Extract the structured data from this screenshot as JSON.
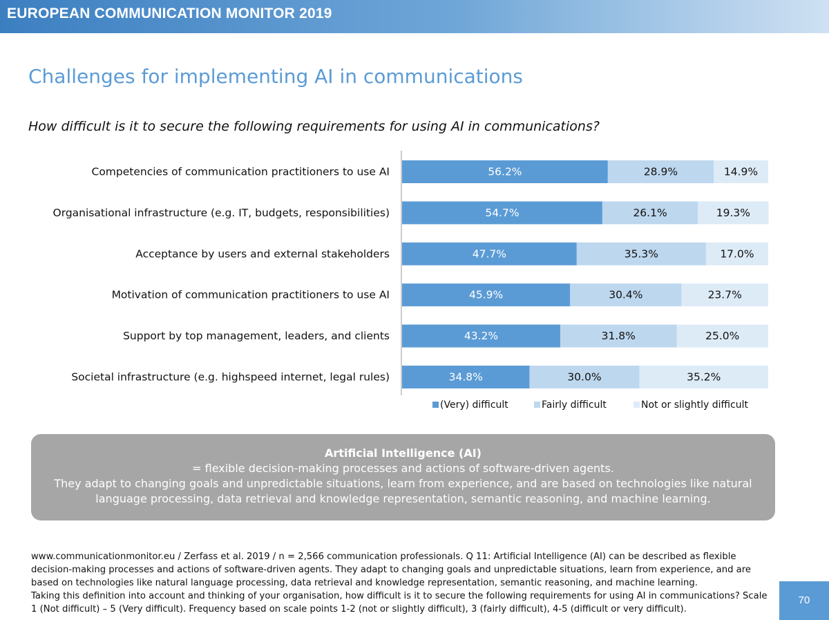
{
  "header": {
    "title": "EUROPEAN COMMUNICATION MONITOR 2019"
  },
  "page": {
    "title": "Challenges for implementing AI in communications",
    "question": "How difficult is it to secure the following requirements for using AI in communications?",
    "number": "70"
  },
  "colors": {
    "very_difficult": "#5b9bd5",
    "fairly_difficult": "#bdd7ee",
    "not_difficult": "#ddebf7",
    "header_blue": "#3c7fc1",
    "box_gray": "#a6a6a6"
  },
  "chart_data": {
    "type": "bar",
    "orientation": "horizontal",
    "stacked": true,
    "percent_format": "{v}%",
    "categories": [
      "Competencies of communication practitioners to use AI",
      "Organisational infrastructure (e.g. IT, budgets, responsibilities)",
      "Acceptance by users and external stakeholders",
      "Motivation of communication practitioners to use AI",
      "Support by top management, leaders, and clients",
      "Societal infrastructure (e.g. highspeed internet, legal rules)"
    ],
    "series": [
      {
        "name": "(Very) difficult",
        "values": [
          56.2,
          54.7,
          47.7,
          45.9,
          43.2,
          34.8
        ],
        "color": "#5b9bd5"
      },
      {
        "name": "Fairly difficult",
        "values": [
          28.9,
          26.1,
          35.3,
          30.4,
          31.8,
          30.0
        ],
        "color": "#bdd7ee"
      },
      {
        "name": "Not or slightly difficult",
        "values": [
          14.9,
          19.3,
          17.0,
          23.7,
          25.0,
          35.2
        ],
        "color": "#ddebf7"
      }
    ],
    "xlim": [
      0,
      100
    ],
    "legend_position": "bottom"
  },
  "ai_box": {
    "title": "Artificial Intelligence (AI)",
    "line1": "= flexible decision-making processes and actions of software-driven agents.",
    "line2": "They adapt to changing goals and unpredictable situations, learn from experience, and are based on technologies like natural language processing, data retrieval and knowledge representation, semantic reasoning, and machine learning."
  },
  "footnote": {
    "line1": "www.communicationmonitor.eu / Zerfass et al. 2019 / n = 2,566 communication professionals. Q 11: Artificial Intelligence (AI) can be described as flexible decision-making processes and actions of software-driven agents. They adapt to changing goals and unpredictable situations, learn from experience, and are based on technologies like natural language processing, data retrieval and knowledge representation, semantic reasoning, and machine learning.",
    "line2": "Taking this definition into account and thinking of your organisation, how difficult is it to secure the following requirements for using AI in communications? Scale 1 (Not difficult) – 5 (Very difficult). Frequency based on scale points 1-2 (not or slightly difficult), 3 (fairly difficult), 4-5 (difficult or very difficult)."
  }
}
